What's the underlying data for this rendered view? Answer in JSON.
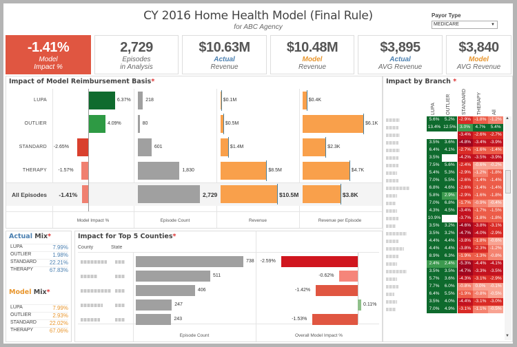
{
  "header": {
    "title": "CY 2016 Home Health Model (Final Rule)",
    "subtitle": "for ABC Agency",
    "payor_label": "Payor Type",
    "payor_value": "MEDICARE"
  },
  "kpis": [
    {
      "value": "-1.41%",
      "line1": "Model",
      "line2": "Impact %",
      "style": "red"
    },
    {
      "value": "2,729",
      "line1": "Episodes",
      "line2": "in Analysis",
      "style": "plain"
    },
    {
      "value": "$10.63M",
      "line1": "Actual",
      "line2": "Revenue",
      "style": "blue"
    },
    {
      "value": "$10.48M",
      "line1": "Model",
      "line2": "Revenue",
      "style": "orange"
    },
    {
      "value": "$3,895",
      "line1": "Actual",
      "line2": "AVG Revenue",
      "style": "blue"
    },
    {
      "value": "$3,840",
      "line1": "Model",
      "line2": "AVG Revenue",
      "style": "orange"
    }
  ],
  "colors": {
    "red_kpi": "#e05641",
    "bar_gray": "#a0a0a0",
    "bar_orange": "#f9a04b",
    "green_dark": "#0f6b2e",
    "green": "#2e9a44",
    "red": "#d9402e",
    "red_light": "#f08070",
    "actual_blue": "#4a7fb0",
    "model_orange": "#e8962e"
  },
  "reimbursement": {
    "title": "Impact of Model Reimbursement Basis",
    "axis_labels": [
      "Model Impact %",
      "Episode Count",
      "Revenue",
      "Revenue per Episode"
    ],
    "rows": [
      {
        "label": "LUPA",
        "impact": 6.37,
        "impact_label": "6.37%",
        "count": 218,
        "count_label": "218",
        "revenue": 0.1,
        "revenue_label": "$0.1M",
        "rpe": 0.4,
        "rpe_label": "$0.4K"
      },
      {
        "label": "OUTLIER",
        "impact": 4.09,
        "impact_label": "4.09%",
        "count": 80,
        "count_label": "80",
        "revenue": 0.5,
        "revenue_label": "$0.5M",
        "rpe": 6.1,
        "rpe_label": "$6.1K"
      },
      {
        "label": "STANDARD",
        "impact": -2.65,
        "impact_label": "-2.65%",
        "count": 601,
        "count_label": "601",
        "revenue": 1.4,
        "revenue_label": "$1.4M",
        "rpe": 2.3,
        "rpe_label": "$2.3K"
      },
      {
        "label": "THERAPY",
        "impact": -1.57,
        "impact_label": "-1.57%",
        "count": 1830,
        "count_label": "1,830",
        "revenue": 8.5,
        "revenue_label": "$8.5M",
        "rpe": 4.7,
        "rpe_label": "$4.7K"
      },
      {
        "label": "All Episodes",
        "impact": -1.41,
        "impact_label": "-1.41%",
        "count": 2729,
        "count_label": "2,729",
        "revenue": 10.5,
        "revenue_label": "$10.5M",
        "rpe": 3.8,
        "rpe_label": "$3.8K",
        "total": true
      }
    ]
  },
  "actual_mix": {
    "title_a": "Actual",
    "title_b": "Mix",
    "rows": [
      {
        "label": "LUPA",
        "value": "7.99%"
      },
      {
        "label": "OUTLIER",
        "value": "1.98%"
      },
      {
        "label": "STANDARD",
        "value": "22.21%"
      },
      {
        "label": "THERAPY",
        "value": "67.83%"
      }
    ]
  },
  "model_mix": {
    "title_a": "Model",
    "title_b": "Mix",
    "rows": [
      {
        "label": "LUPA",
        "value": "7.99%"
      },
      {
        "label": "OUTLIER",
        "value": "2.93%"
      },
      {
        "label": "STANDARD",
        "value": "22.02%"
      },
      {
        "label": "THERAPY",
        "value": "67.06%"
      }
    ]
  },
  "counties": {
    "title": "Impact for Top 5 Counties",
    "col_county": "County",
    "col_state": "State",
    "axis_count": "Episode Count",
    "axis_impact": "Overall Model Impact %",
    "rows": [
      {
        "count": 738,
        "count_label": "738",
        "impact": -2.59,
        "impact_label": "-2.59%"
      },
      {
        "count": 511,
        "count_label": "511",
        "impact": -0.62,
        "impact_label": "-0.62%"
      },
      {
        "count": 406,
        "count_label": "406",
        "impact": -1.42,
        "impact_label": "-1.42%"
      },
      {
        "count": 247,
        "count_label": "247",
        "impact": 0.11,
        "impact_label": "0.11%"
      },
      {
        "count": 243,
        "count_label": "243",
        "impact": -1.53,
        "impact_label": "-1.53%"
      }
    ]
  },
  "branch": {
    "title": "Impact by Branch",
    "columns": [
      "LUPA",
      "OUTLIER",
      "STANDARD",
      "THERAPY",
      "All"
    ],
    "rows": [
      [
        "5.6%",
        "5.2%",
        "-2.9%",
        "-1.8%",
        "-1.2%"
      ],
      [
        "13.4%",
        "12.5%",
        "3.0%",
        "4.7%",
        "5.4%"
      ],
      [
        "",
        "",
        "-3.4%",
        "-2.6%",
        "-2.7%"
      ],
      [
        "3.5%",
        "3.6%",
        "-4.8%",
        "-3.4%",
        "-3.9%"
      ],
      [
        "6.4%",
        "4.1%",
        "-2.7%",
        "-1.6%",
        "-1.4%"
      ],
      [
        "3.5%",
        "",
        "-4.2%",
        "-3.5%",
        "-3.9%"
      ],
      [
        "7.5%",
        "5.6%",
        "-2.4%",
        "-0.6%",
        "-0.2%"
      ],
      [
        "5.4%",
        "5.3%",
        "-2.9%",
        "-1.2%",
        "-1.8%"
      ],
      [
        "7.0%",
        "5.5%",
        "-2.6%",
        "-1.4%",
        "-1.4%"
      ],
      [
        "6.8%",
        "4.6%",
        "-2.6%",
        "-1.4%",
        "-1.4%"
      ],
      [
        "5.8%",
        "2.9%",
        "-2.9%",
        "-1.6%",
        "-1.8%"
      ],
      [
        "7.0%",
        "6.8%",
        "-1.7%",
        "-0.9%",
        "-0.4%"
      ],
      [
        "4.3%",
        "4.5%",
        "-3.4%",
        "-1.7%",
        "-1.5%"
      ],
      [
        "10.9%",
        "",
        "-3.7%",
        "-1.8%",
        "-1.8%"
      ],
      [
        "3.5%",
        "3.2%",
        "-4.6%",
        "-3.8%",
        "-3.1%"
      ],
      [
        "3.5%",
        "3.2%",
        "-4.7%",
        "-4.0%",
        "-2.9%"
      ],
      [
        "4.4%",
        "4.4%",
        "-3.8%",
        "-1.8%",
        "-0.6%"
      ],
      [
        "4.4%",
        "4.4%",
        "-3.8%",
        "-2.3%",
        "-1.2%"
      ],
      [
        "8.9%",
        "6.3%",
        "-1.9%",
        "-1.3%",
        "-0.8%"
      ],
      [
        "2.4%",
        "2.4%",
        "-5.3%",
        "-4.4%",
        "-4.1%"
      ],
      [
        "3.5%",
        "3.5%",
        "-4.7%",
        "-3.3%",
        "-3.5%"
      ],
      [
        "5.7%",
        "3.6%",
        "-4.3%",
        "-3.1%",
        "-2.9%"
      ],
      [
        "7.7%",
        "6.0%",
        "-0.8%",
        "0.0%",
        "-0.1%"
      ],
      [
        "6.4%",
        "5.5%",
        "-1.9%",
        "-0.8%",
        "-0.5%"
      ],
      [
        "3.5%",
        "4.0%",
        "-4.4%",
        "-3.1%",
        "-3.0%"
      ],
      [
        "7.0%",
        "4.9%",
        "-3.1%",
        "-1.1%",
        "-0.5%"
      ]
    ]
  }
}
